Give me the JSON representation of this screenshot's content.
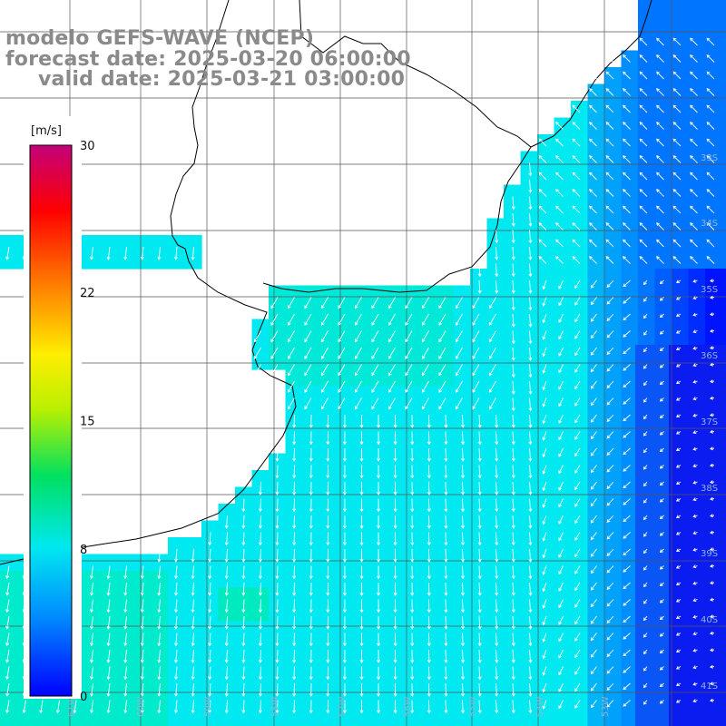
{
  "title": {
    "line1": "modelo GEFS-WAVE (NCEP)",
    "line2": "forecast date: 2025-03-20 06:00:00",
    "line3": "valid date: 2025-03-21 03:00:00"
  },
  "colorbar": {
    "unit": "[m/s]",
    "ticks": [
      "30",
      "22",
      "15",
      "8",
      "0"
    ],
    "tick_values": [
      30,
      22,
      15,
      8,
      0
    ],
    "range": [
      0,
      30
    ]
  },
  "lat_labels": [
    "33S",
    "34S",
    "35S",
    "36S",
    "37S",
    "38S",
    "39S",
    "40S",
    "41S"
  ],
  "lon_labels": [
    "61W",
    "60W",
    "59W",
    "58W",
    "57W",
    "56W",
    "55W",
    "54W",
    "53W"
  ],
  "colors": {
    "land": "#ffffff",
    "coast": "#000000",
    "grid": "#555555",
    "arrows": "#ffffff",
    "title_text": "#8a8a8a",
    "label_text": "#8fb4d9"
  },
  "chart_data": {
    "type": "heatmap",
    "variable": "wind speed",
    "unit": "m/s",
    "colorscale_range": [
      0,
      30
    ],
    "typical_values": {
      "offshore_east": 3,
      "shelf": 8,
      "coastal": 9
    }
  }
}
